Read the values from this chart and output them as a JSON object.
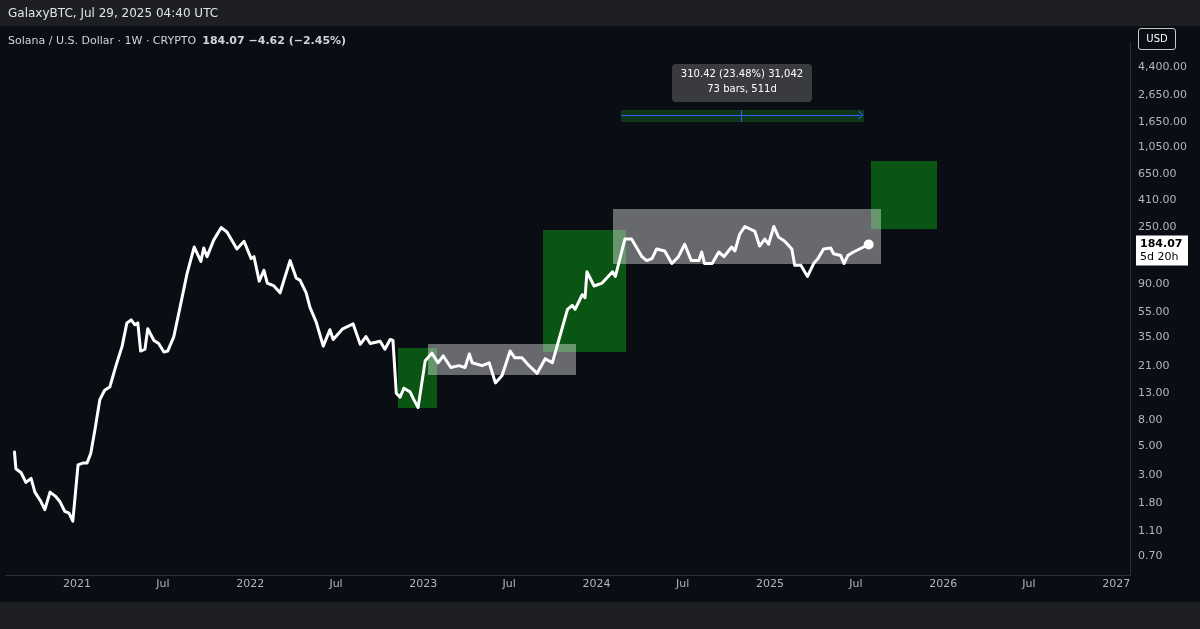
{
  "chart_data": {
    "type": "line",
    "title": "Solana / U.S. Dollar · 1W · CRYPTO",
    "subtitle": "184.07 −4.62 (−2.45%)",
    "x": [
      "2020-08-22",
      "2020-08-25",
      "2020-09-05",
      "2020-09-15",
      "2020-09-26",
      "2020-10-04",
      "2020-10-17",
      "2020-10-25",
      "2020-11-05",
      "2020-11-16",
      "2020-11-26",
      "2020-12-06",
      "2020-12-15",
      "2020-12-23",
      "2021-01-03",
      "2021-01-13",
      "2021-01-22",
      "2021-01-30",
      "2021-02-08",
      "2021-02-18",
      "2021-02-28",
      "2021-03-11",
      "2021-03-24",
      "2021-04-06",
      "2021-04-16",
      "2021-04-25",
      "2021-05-03",
      "2021-05-09",
      "2021-05-15",
      "2021-05-24",
      "2021-05-30",
      "2021-06-12",
      "2021-06-22",
      "2021-07-03",
      "2021-07-11",
      "2021-07-24",
      "2021-08-06",
      "2021-08-21",
      "2021-09-05",
      "2021-09-19",
      "2021-09-25",
      "2021-10-02",
      "2021-10-16",
      "2021-11-01",
      "2021-11-13",
      "2021-12-04",
      "2021-12-19",
      "2022-01-03",
      "2022-01-09",
      "2022-01-20",
      "2022-01-30",
      "2022-02-06",
      "2022-02-20",
      "2022-03-05",
      "2022-03-26",
      "2022-04-08",
      "2022-04-16",
      "2022-04-29",
      "2022-05-07",
      "2022-05-20",
      "2022-06-04",
      "2022-06-18",
      "2022-06-25",
      "2022-07-15",
      "2022-08-06",
      "2022-08-21",
      "2022-09-02",
      "2022-09-11",
      "2022-10-02",
      "2022-10-12",
      "2022-10-23",
      "2022-10-29",
      "2022-11-05",
      "2022-11-13",
      "2022-11-21",
      "2022-12-04",
      "2022-12-12",
      "2022-12-21",
      "2023-01-05",
      "2023-01-19",
      "2023-02-01",
      "2023-02-12",
      "2023-02-28",
      "2023-03-17",
      "2023-03-30",
      "2023-04-08",
      "2023-04-14",
      "2023-05-05",
      "2023-05-20",
      "2023-06-02",
      "2023-06-16",
      "2023-07-03",
      "2023-07-13",
      "2023-07-28",
      "2023-08-12",
      "2023-08-29",
      "2023-09-15",
      "2023-09-30",
      "2023-10-14",
      "2023-11-01",
      "2023-11-11",
      "2023-11-17",
      "2023-12-02",
      "2023-12-08",
      "2023-12-12",
      "2023-12-27",
      "2024-01-13",
      "2024-02-04",
      "2024-02-10",
      "2024-03-01",
      "2024-03-15",
      "2024-04-06",
      "2024-04-16",
      "2024-04-27",
      "2024-05-07",
      "2024-05-24",
      "2024-06-08",
      "2024-06-22",
      "2024-07-05",
      "2024-07-19",
      "2024-08-04",
      "2024-08-10",
      "2024-08-16",
      "2024-09-01",
      "2024-09-15",
      "2024-09-26",
      "2024-10-12",
      "2024-10-19",
      "2024-10-29",
      "2024-11-09",
      "2024-11-30",
      "2024-12-10",
      "2024-12-21",
      "2024-12-29",
      "2025-01-09",
      "2025-01-19",
      "2025-02-01",
      "2025-02-16",
      "2025-02-22",
      "2025-03-07",
      "2025-03-21",
      "2025-04-03",
      "2025-04-12",
      "2025-04-24",
      "2025-05-09",
      "2025-05-15",
      "2025-05-30",
      "2025-06-06",
      "2025-06-14",
      "2025-06-26",
      "2025-07-28"
    ],
    "values": [
      4.5,
      3.34,
      3.11,
      2.62,
      2.81,
      2.2,
      1.85,
      1.61,
      2.2,
      2.05,
      1.85,
      1.56,
      1.51,
      1.31,
      3.58,
      3.7,
      3.7,
      4.42,
      6.82,
      11.5,
      13.6,
      14.4,
      21.1,
      29.9,
      45.3,
      47.8,
      43.8,
      45.3,
      27.4,
      28.3,
      40.8,
      33.1,
      31.4,
      26.9,
      27.4,
      35.5,
      59.8,
      110,
      176,
      136,
      173,
      148,
      199,
      249,
      230,
      170,
      195,
      143,
      148,
      95.6,
      116,
      92.4,
      87.7,
      77.6,
      138,
      101,
      97.3,
      77.6,
      59.8,
      46.1,
      29.9,
      40.1,
      33.7,
      40.8,
      44.5,
      30.9,
      35.5,
      31.4,
      32.6,
      28.3,
      33.7,
      33.1,
      12.9,
      12,
      14.1,
      13.2,
      11.5,
      10,
      23,
      26.4,
      22.2,
      25.1,
      20.4,
      21.1,
      20.4,
      26,
      22.2,
      21.1,
      22.2,
      15.5,
      17.7,
      27.4,
      24.3,
      24.3,
      21.1,
      18.4,
      23.9,
      22.2,
      33.7,
      57.8,
      62,
      57.8,
      75,
      71.2,
      113,
      87.7,
      92.4,
      113,
      104,
      203,
      203,
      148,
      138,
      143,
      170,
      164,
      131,
      148,
      185,
      138,
      138,
      161,
      131,
      131,
      161,
      148,
      176,
      164,
      221,
      254,
      233,
      179,
      203,
      185,
      254,
      210,
      195,
      170,
      127,
      127,
      104,
      131,
      143,
      170,
      173,
      156,
      151,
      131,
      151,
      161,
      184.07
    ],
    "color": "#ffffff",
    "log": true,
    "xlim": [
      "2020-08-02",
      "2027-01-30"
    ],
    "xticks": [
      {
        "value": "2021-01-01",
        "label": "2021"
      },
      {
        "value": "2021-07-01",
        "label": "Jul"
      },
      {
        "value": "2022-01-01",
        "label": "2022"
      },
      {
        "value": "2022-07-01",
        "label": "Jul"
      },
      {
        "value": "2023-01-01",
        "label": "2023"
      },
      {
        "value": "2023-07-01",
        "label": "Jul"
      },
      {
        "value": "2024-01-01",
        "label": "2024"
      },
      {
        "value": "2024-07-01",
        "label": "Jul"
      },
      {
        "value": "2025-01-01",
        "label": "2025"
      },
      {
        "value": "2025-07-01",
        "label": "Jul"
      },
      {
        "value": "2026-01-01",
        "label": "2026"
      },
      {
        "value": "2026-07-01",
        "label": "Jul"
      },
      {
        "value": "2027-01-01",
        "label": "2027"
      }
    ],
    "ylim": [
      0.5,
      6800
    ],
    "yticks": [
      {
        "value": 0.7,
        "label": "0.70"
      },
      {
        "value": 1.1,
        "label": "1.10"
      },
      {
        "value": 1.8,
        "label": "1.80"
      },
      {
        "value": 3,
        "label": "3.00"
      },
      {
        "value": 5,
        "label": "5.00"
      },
      {
        "value": 8,
        "label": "8.00"
      },
      {
        "value": 13,
        "label": "13.00"
      },
      {
        "value": 21,
        "label": "21.00"
      },
      {
        "value": 35,
        "label": "35.00"
      },
      {
        "value": 55,
        "label": "55.00"
      },
      {
        "value": 90,
        "label": "90.00"
      },
      {
        "value": 250,
        "label": "250.00"
      },
      {
        "value": 410,
        "label": "410.00"
      },
      {
        "value": 650,
        "label": "650.00"
      },
      {
        "value": 1050,
        "label": "1,050.00"
      },
      {
        "value": 1650,
        "label": "1,650.00"
      },
      {
        "value": 2650,
        "label": "2,650.00"
      },
      {
        "value": 4400,
        "label": "4,400.00"
      }
    ],
    "annotations": [
      "GalaxyBTC, Jul 29, 2025 04:40 UTC",
      "USD",
      "310.42 (23.48%) 31,042",
      "73 bars, 511d",
      "184.07",
      "5d 20h"
    ]
  }
}
